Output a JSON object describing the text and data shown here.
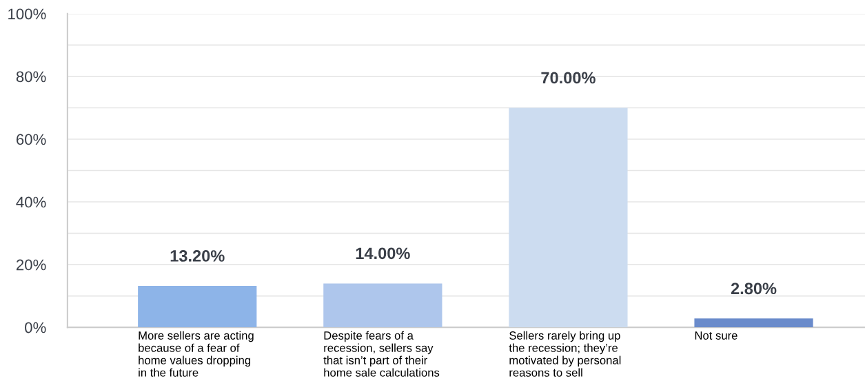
{
  "chart_data": {
    "type": "bar",
    "categories": [
      "More sellers are acting\nbecause of a fear of\nhome values dropping\nin the future",
      "Despite fears of a\nrecession, sellers say\nthat isn’t part of their\nhome sale calculations",
      "Sellers rarely bring up\nthe recession; they’re\nmotivated by personal\nreasons to sell",
      "Not sure"
    ],
    "values": [
      13.2,
      14.0,
      70.0,
      2.8
    ],
    "value_labels": [
      "13.20%",
      "14.00%",
      "70.00%",
      "2.80%"
    ],
    "colors": [
      "#8db4e8",
      "#aec6ec",
      "#ccdcf0",
      "#6a8bcb"
    ],
    "ylim": [
      0,
      100
    ],
    "yticks": [
      {
        "value": 0,
        "label": "0%"
      },
      {
        "value": 10,
        "label": null
      },
      {
        "value": 20,
        "label": "20%"
      },
      {
        "value": 30,
        "label": null
      },
      {
        "value": 40,
        "label": "40%"
      },
      {
        "value": 50,
        "label": null
      },
      {
        "value": 60,
        "label": "60%"
      },
      {
        "value": 70,
        "label": null
      },
      {
        "value": 80,
        "label": "80%"
      },
      {
        "value": 90,
        "label": null
      },
      {
        "value": 100,
        "label": "100%"
      }
    ],
    "grid": "y"
  }
}
